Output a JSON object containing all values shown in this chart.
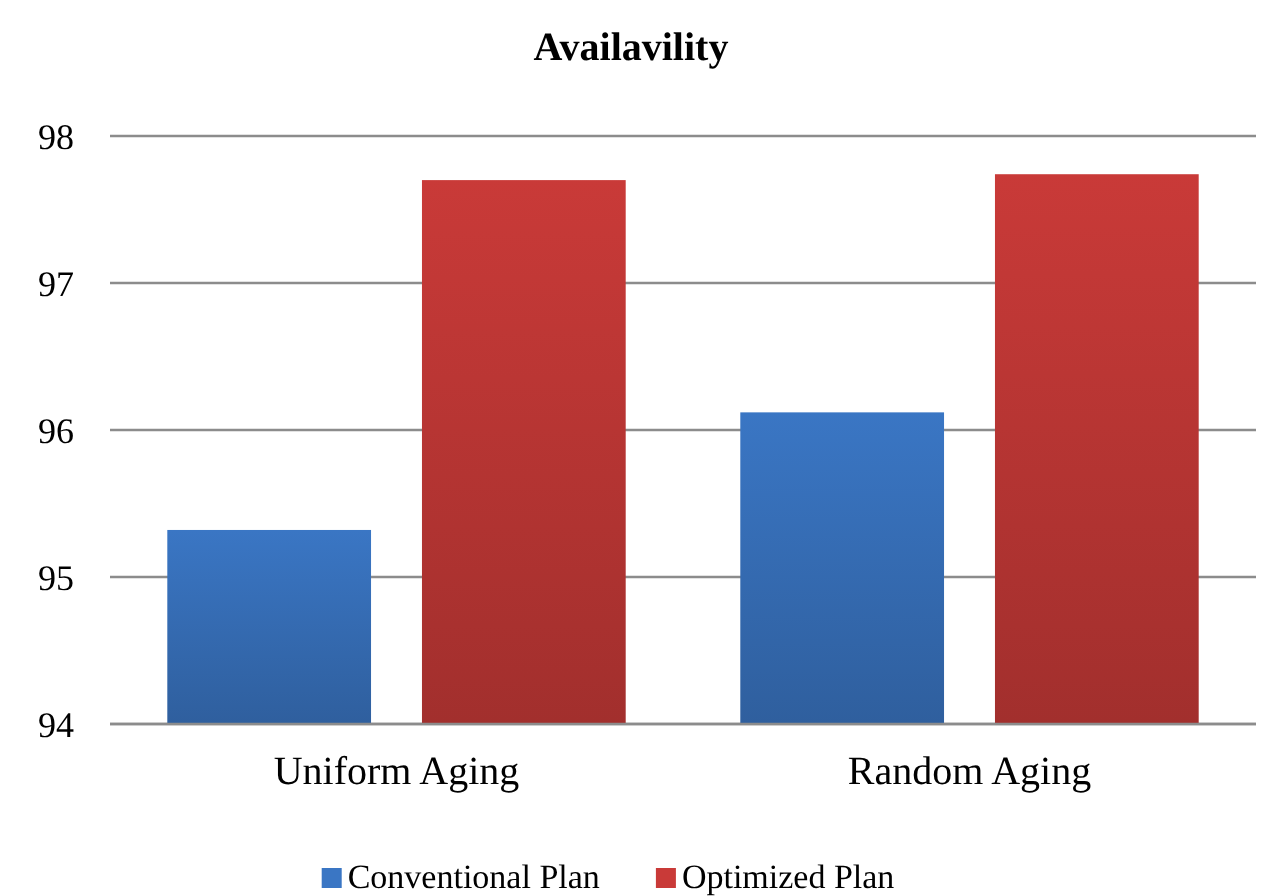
{
  "chart_data": {
    "type": "bar",
    "title": "Availavility",
    "categories": [
      "Uniform Aging",
      "Random Aging"
    ],
    "series": [
      {
        "name": "Conventional Plan",
        "color": "#3a76c4",
        "values": [
          95.32,
          96.12
        ]
      },
      {
        "name": "Optimized Plan",
        "color": "#c93a38",
        "values": [
          97.7,
          97.74
        ]
      }
    ],
    "ylim": [
      94,
      98
    ],
    "yticks": [
      94,
      95,
      96,
      97,
      98
    ],
    "grid": "y",
    "legend": "bottom"
  }
}
